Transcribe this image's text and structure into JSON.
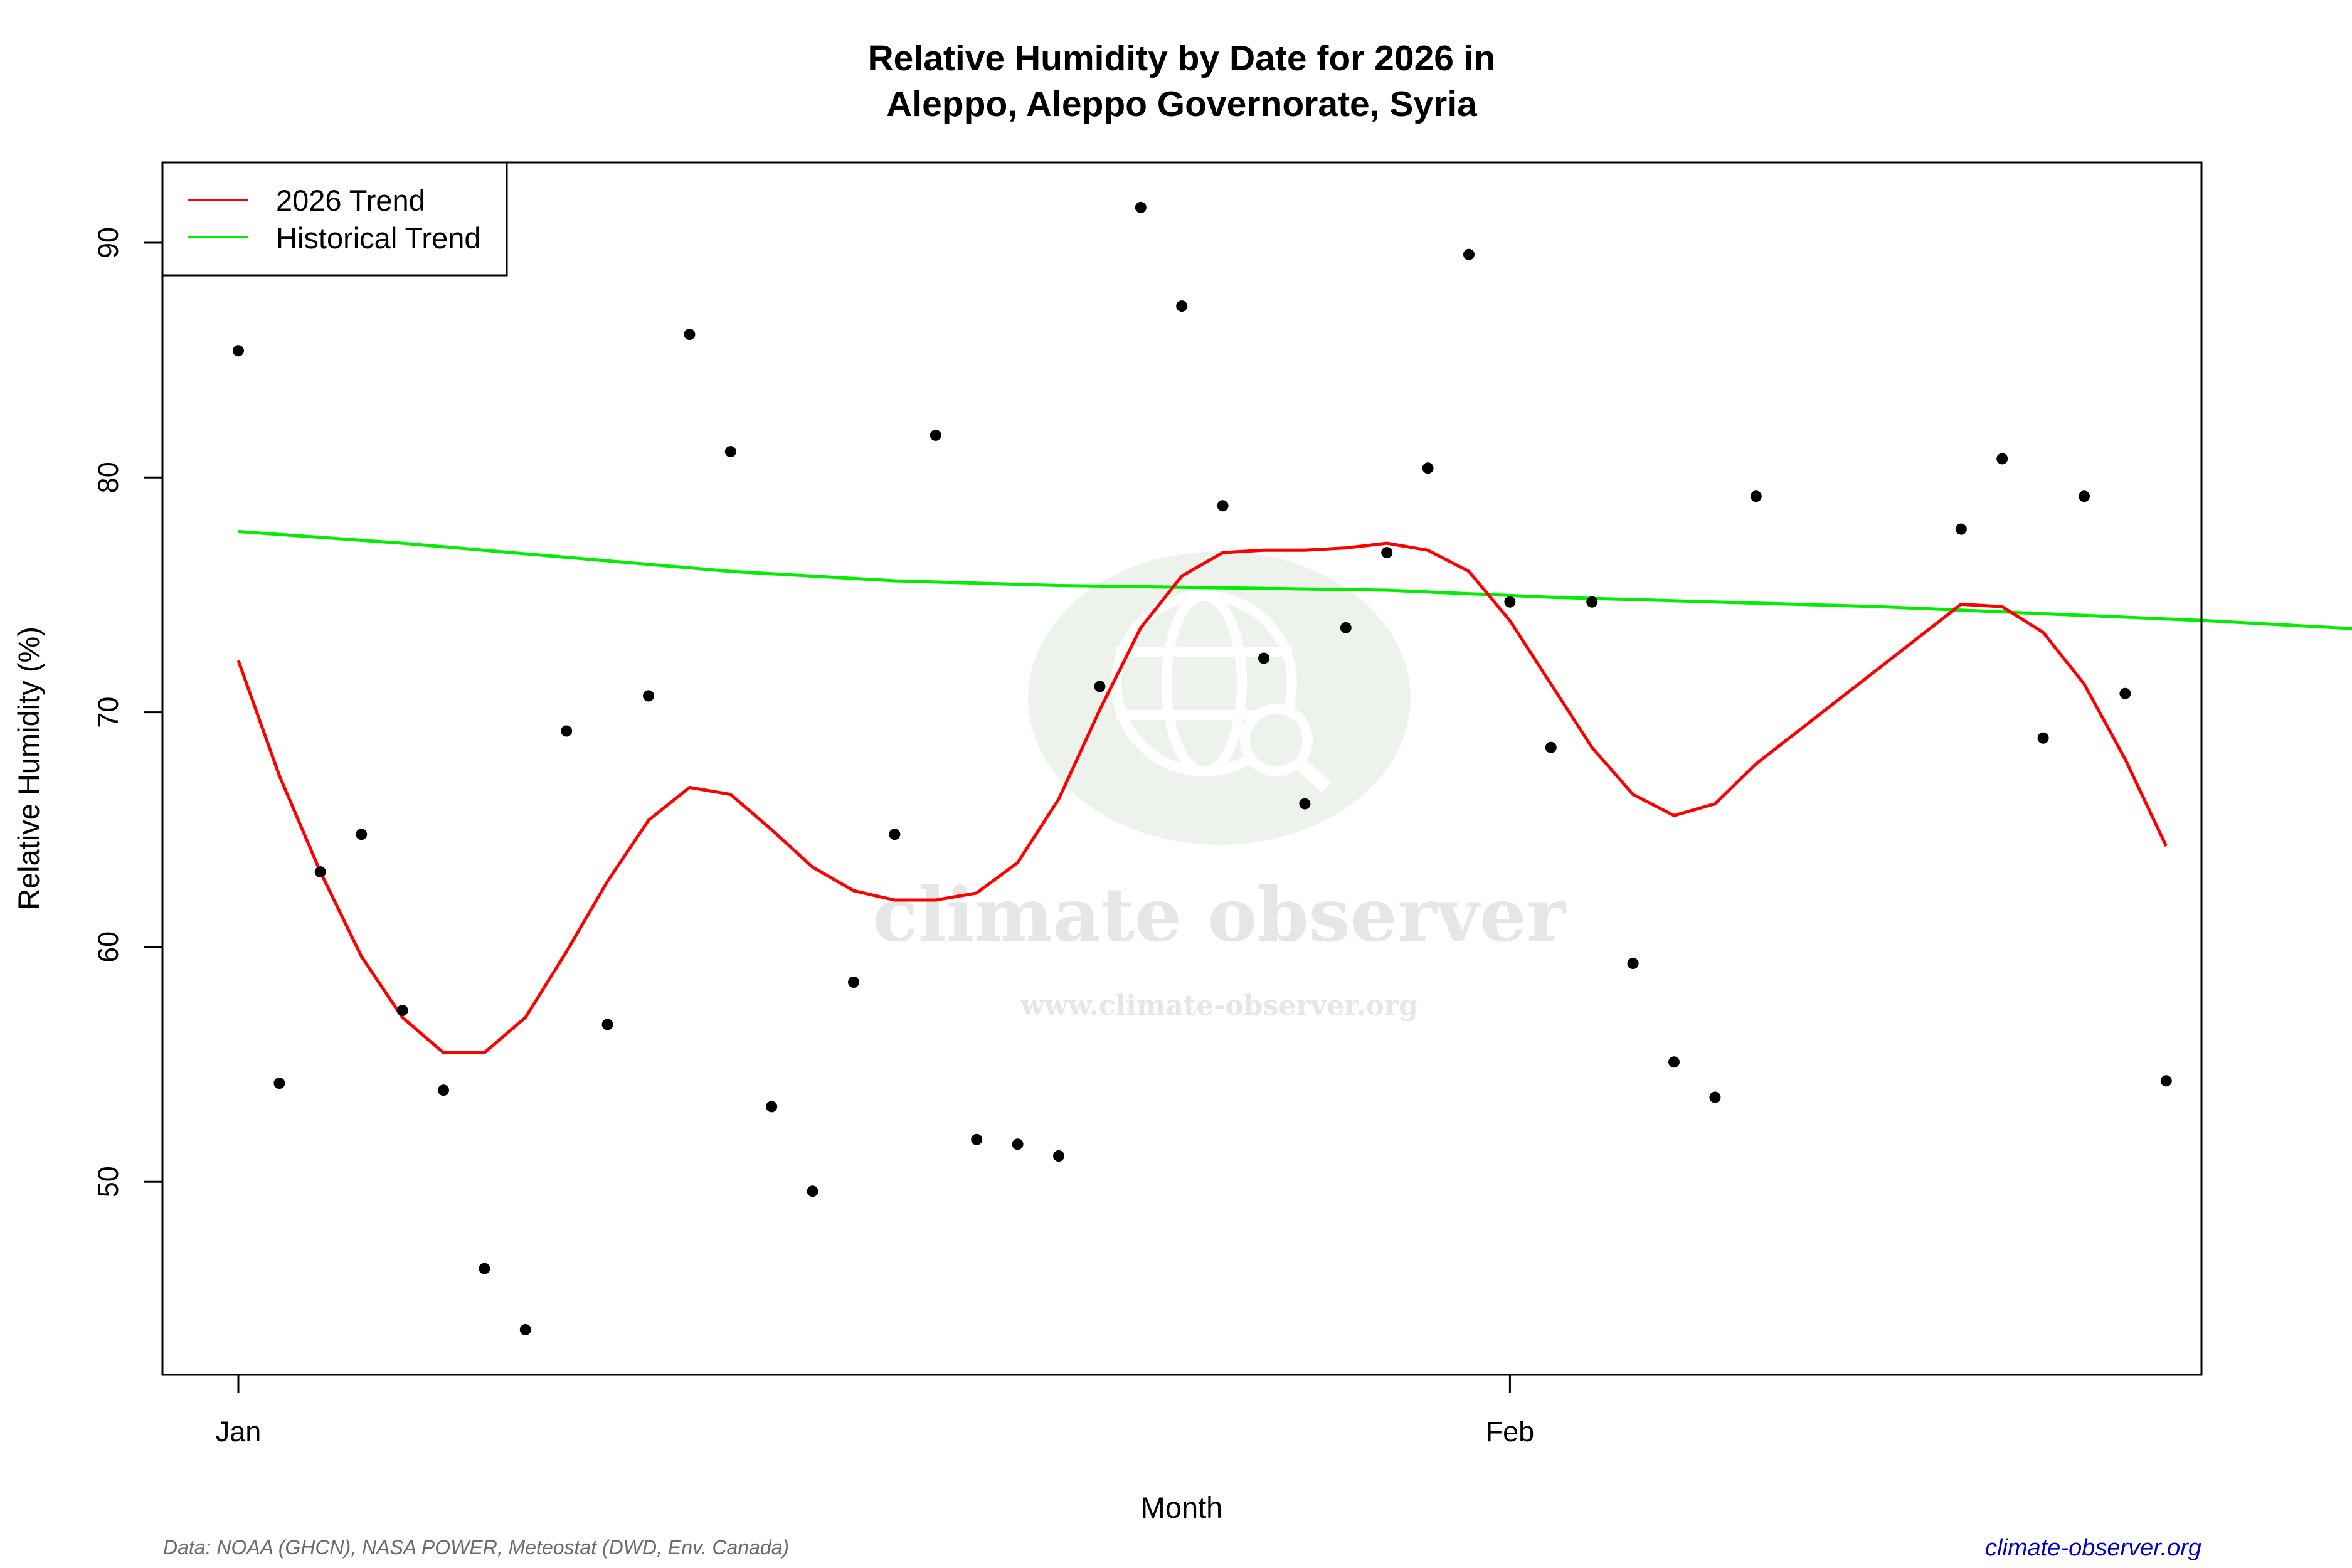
{
  "title": {
    "line1": "Relative Humidity by Date for 2026 in",
    "line2": "Aleppo, Aleppo Governorate, Syria"
  },
  "axes": {
    "xlabel": "Month",
    "ylabel": "Relative Humidity (%)",
    "x_ticks": [
      {
        "label": "Jan",
        "day": 0
      },
      {
        "label": "Feb",
        "day": 31
      }
    ],
    "y_ticks": [
      50,
      60,
      70,
      80,
      90
    ]
  },
  "legend": {
    "items": [
      {
        "label": "2026 Trend",
        "color": "#ff0000"
      },
      {
        "label": "Historical Trend",
        "color": "#00ee00"
      }
    ]
  },
  "watermark": {
    "brand": "climate observer",
    "url": "www.climate-observer.org"
  },
  "footer": {
    "source": "Data: NOAA (GHCN), NASA POWER, Meteostat (DWD, Env. Canada)",
    "site": "climate-observer.org"
  },
  "colors": {
    "trend_2026": "#ff0000",
    "historical": "#00ee00",
    "points": "#000000",
    "footer_link": "#0000cc",
    "footer_text": "#6b6b6b"
  },
  "chart_data": {
    "type": "scatter",
    "title": "Relative Humidity by Date for 2026 in Aleppo, Aleppo Governorate, Syria",
    "xlabel": "Month",
    "ylabel": "Relative Humidity (%)",
    "x_tick_labels": [
      "Jan",
      "Feb"
    ],
    "ylim": [
      42.5,
      93.5
    ],
    "xlim_days": [
      -1.85,
      52.2
    ],
    "grid": false,
    "legend_position": "top-left",
    "series": [
      {
        "name": "Daily observations",
        "kind": "points",
        "x_day": [
          0,
          1,
          2,
          3,
          4,
          5,
          6,
          7,
          8,
          9,
          10,
          11,
          12,
          13,
          14,
          15,
          16,
          17,
          18,
          19,
          20,
          21,
          22,
          23,
          24,
          25,
          26,
          27,
          28,
          29,
          30,
          31,
          32,
          33,
          34,
          35,
          36,
          37,
          42,
          43,
          44,
          45,
          46,
          47
        ],
        "dates": [
          "Jan 1",
          "Jan 2",
          "Jan 3",
          "Jan 4",
          "Jan 5",
          "Jan 6",
          "Jan 7",
          "Jan 8",
          "Jan 9",
          "Jan 10",
          "Jan 11",
          "Jan 12",
          "Jan 13",
          "Jan 14",
          "Jan 15",
          "Jan 16",
          "Jan 17",
          "Jan 18",
          "Jan 19",
          "Jan 20",
          "Jan 21",
          "Jan 22",
          "Jan 23",
          "Jan 24",
          "Jan 25",
          "Jan 26",
          "Jan 27",
          "Jan 28",
          "Jan 29",
          "Jan 30",
          "Jan 31",
          "Feb 1",
          "Feb 2",
          "Feb 3",
          "Feb 4",
          "Feb 5",
          "Feb 6",
          "Feb 7",
          "Feb 12",
          "Feb 13",
          "Feb 14",
          "Feb 15",
          "Feb 16",
          "Feb 17"
        ],
        "values": [
          85.4,
          54.2,
          63.2,
          64.8,
          57.3,
          53.9,
          46.3,
          43.7,
          69.2,
          56.7,
          70.7,
          86.1,
          81.1,
          53.2,
          49.6,
          58.5,
          64.8,
          81.8,
          51.8,
          51.6,
          51.1,
          71.1,
          91.5,
          87.3,
          78.8,
          72.3,
          66.1,
          73.6,
          76.8,
          80.4,
          89.5,
          74.7,
          68.5,
          74.7,
          59.3,
          55.1,
          53.6,
          79.2,
          77.8,
          80.8,
          68.9,
          79.2,
          70.8,
          54.3
        ]
      },
      {
        "name": "2026 Trend",
        "kind": "line",
        "color": "#ff0000",
        "x_day": [
          0,
          1,
          2,
          3,
          4,
          5,
          6,
          7,
          8,
          9,
          10,
          11,
          12,
          13,
          14,
          15,
          16,
          17,
          18,
          19,
          20,
          21,
          22,
          23,
          24,
          25,
          26,
          27,
          28,
          29,
          30,
          31,
          32,
          33,
          34,
          35,
          36,
          37,
          42,
          43,
          44,
          45,
          46,
          47
        ],
        "values": [
          72.2,
          67.3,
          63.2,
          59.6,
          57.0,
          55.5,
          55.5,
          57.0,
          59.8,
          62.8,
          65.4,
          66.8,
          66.5,
          65.0,
          63.4,
          62.4,
          62.0,
          62.0,
          62.3,
          63.6,
          66.3,
          70.1,
          73.6,
          75.8,
          76.8,
          76.9,
          76.9,
          77.0,
          77.2,
          76.9,
          76.0,
          73.9,
          71.2,
          68.5,
          66.5,
          65.6,
          66.1,
          67.8,
          74.6,
          74.5,
          73.4,
          71.2,
          68.0,
          64.3
        ]
      },
      {
        "name": "Historical Trend",
        "kind": "line",
        "color": "#00ee00",
        "x_day": [
          0,
          4,
          8,
          12,
          16,
          20,
          24,
          28,
          32,
          36,
          40,
          44,
          48,
          52.2
        ],
        "values": [
          77.7,
          77.2,
          76.6,
          76.0,
          75.6,
          75.4,
          75.3,
          75.2,
          74.9,
          74.7,
          74.5,
          74.2,
          73.9,
          73.5
        ]
      }
    ]
  }
}
